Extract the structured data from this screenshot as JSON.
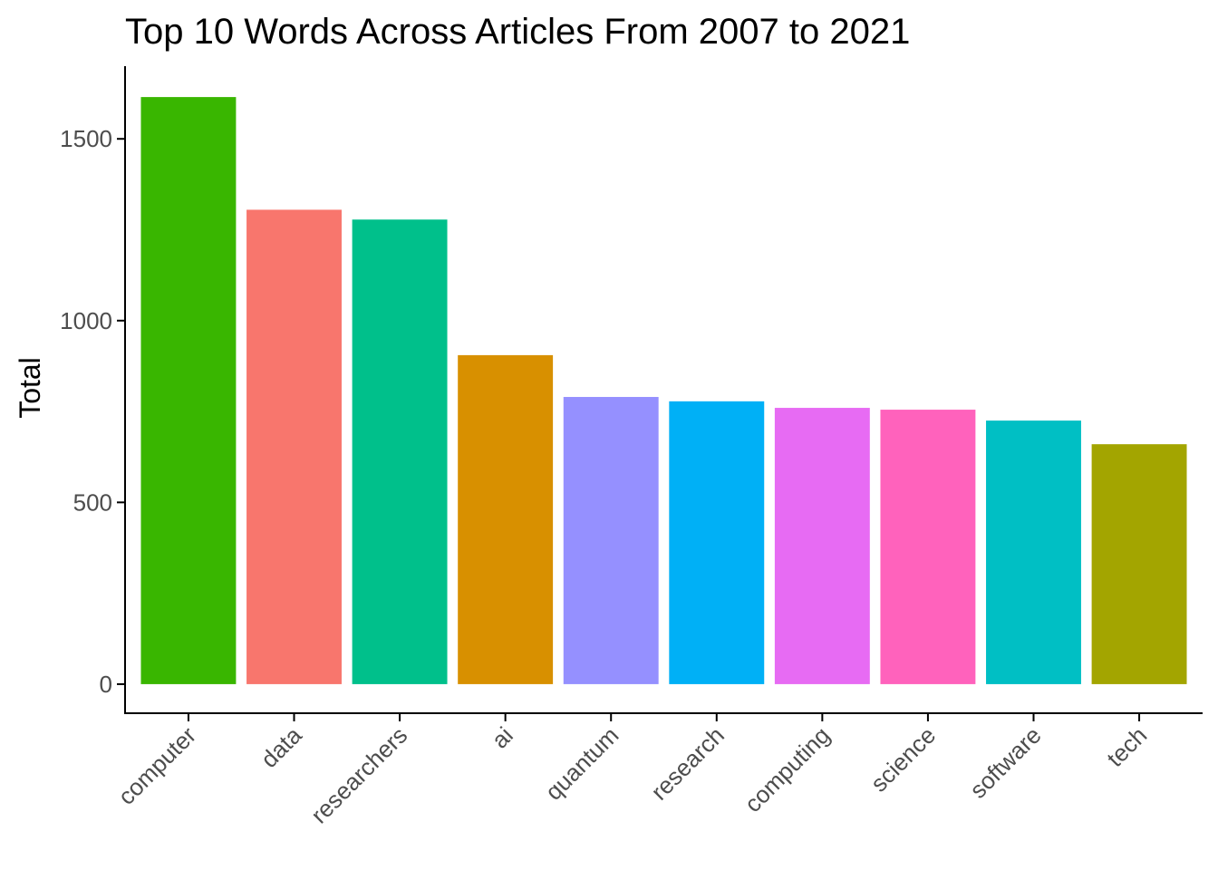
{
  "chart_data": {
    "type": "bar",
    "title": "Top 10 Words Across Articles From 2007 to 2021",
    "xlabel": "",
    "ylabel": "Total",
    "ylim": [
      -80,
      1700
    ],
    "yticks": [
      0,
      500,
      1000,
      1500
    ],
    "grid": false,
    "legend": "none",
    "categories": [
      "computer",
      "data",
      "researchers",
      "ai",
      "quantum",
      "research",
      "computing",
      "science",
      "software",
      "tech"
    ],
    "values": [
      1615,
      1305,
      1278,
      905,
      790,
      778,
      760,
      755,
      725,
      660
    ],
    "colors": [
      "#39B600",
      "#F8766D",
      "#00C08B",
      "#D89000",
      "#9590FF",
      "#00B0F6",
      "#E76BF3",
      "#FF62BC",
      "#00BFC4",
      "#A3A500"
    ]
  }
}
